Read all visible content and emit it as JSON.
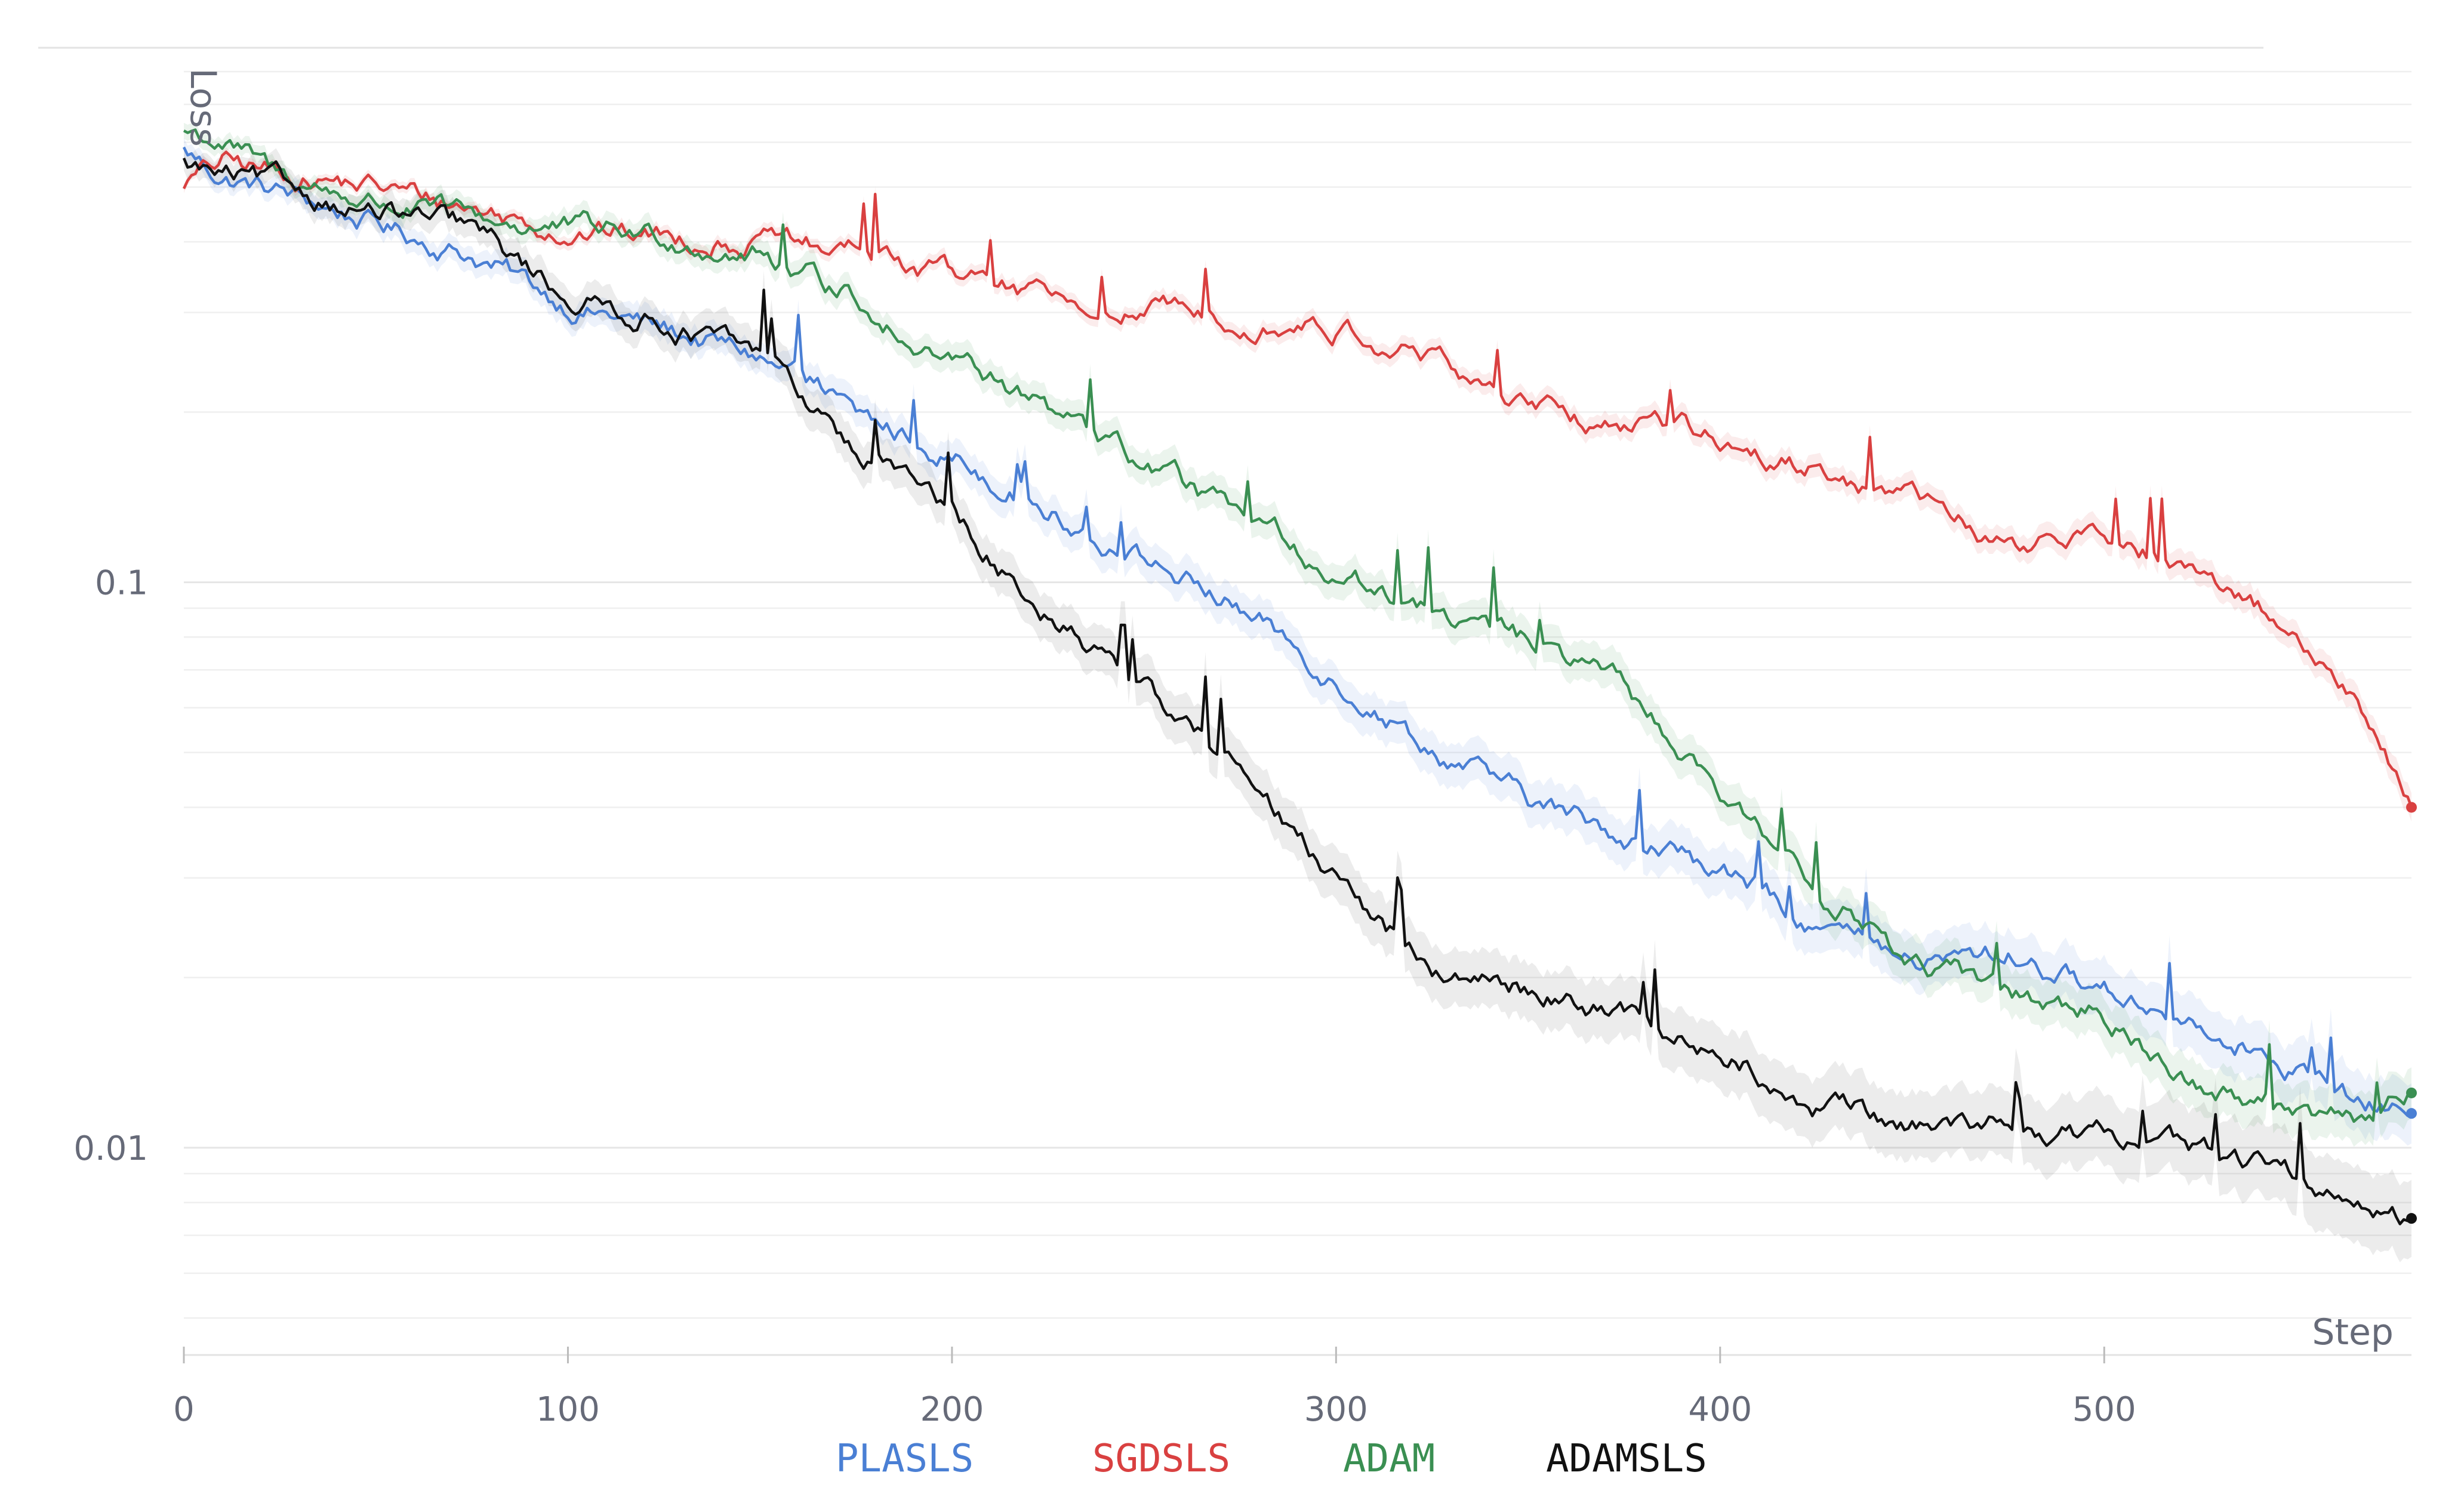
{
  "chart_data": {
    "type": "line",
    "title": "",
    "xlabel": "Step",
    "ylabel": "Loss",
    "y_scale": "log",
    "xlim": [
      0,
      580
    ],
    "ylim": [
      0.0043,
      0.8
    ],
    "x_ticks": [
      {
        "value": 0,
        "label": "0"
      },
      {
        "value": 100,
        "label": "100"
      },
      {
        "value": 200,
        "label": "200"
      },
      {
        "value": 300,
        "label": "300"
      },
      {
        "value": 400,
        "label": "400"
      },
      {
        "value": 500,
        "label": "500"
      }
    ],
    "y_ticks": [
      {
        "value": 0.1,
        "label": "0.1"
      },
      {
        "value": 0.01,
        "label": "0.01"
      }
    ],
    "grid": true,
    "legend_position": "bottom-center",
    "series": [
      {
        "name": "PLASLS",
        "color": "#4a7fd4",
        "band_color": "#4a7fd4",
        "x": [
          0,
          10,
          25,
          50,
          75,
          100,
          125,
          150,
          165,
          175,
          200,
          225,
          250,
          275,
          300,
          325,
          350,
          375,
          400,
          425,
          450,
          475,
          500,
          525,
          550,
          565,
          579
        ],
        "y": [
          0.58,
          0.52,
          0.49,
          0.43,
          0.38,
          0.31,
          0.28,
          0.25,
          0.22,
          0.195,
          0.17,
          0.135,
          0.11,
          0.09,
          0.068,
          0.051,
          0.041,
          0.036,
          0.031,
          0.025,
          0.021,
          0.022,
          0.019,
          0.017,
          0.014,
          0.012,
          0.0115
        ],
        "band_ratio": 1.13
      },
      {
        "name": "SGDSLS",
        "color": "#d94040",
        "band_color": "#d94040",
        "x": [
          0,
          10,
          25,
          50,
          75,
          100,
          125,
          150,
          175,
          200,
          225,
          250,
          275,
          300,
          325,
          350,
          375,
          400,
          425,
          450,
          475,
          500,
          525,
          550,
          565,
          579
        ],
        "y": [
          0.51,
          0.55,
          0.53,
          0.5,
          0.46,
          0.42,
          0.41,
          0.4,
          0.38,
          0.35,
          0.31,
          0.3,
          0.3,
          0.28,
          0.25,
          0.2,
          0.19,
          0.18,
          0.16,
          0.14,
          0.115,
          0.12,
          0.105,
          0.082,
          0.062,
          0.04
        ],
        "band_ratio": 1.06
      },
      {
        "name": "ADAM",
        "color": "#3a8f52",
        "band_color": "#3a8f52",
        "x": [
          0,
          10,
          25,
          50,
          75,
          100,
          125,
          150,
          175,
          200,
          225,
          250,
          275,
          300,
          325,
          350,
          375,
          400,
          425,
          450,
          475,
          500,
          525,
          550,
          565,
          579
        ],
        "y": [
          0.63,
          0.6,
          0.52,
          0.47,
          0.44,
          0.42,
          0.41,
          0.38,
          0.32,
          0.25,
          0.2,
          0.16,
          0.13,
          0.105,
          0.089,
          0.078,
          0.065,
          0.041,
          0.03,
          0.021,
          0.019,
          0.017,
          0.013,
          0.012,
          0.011,
          0.0125
        ],
        "band_ratio": 1.11
      },
      {
        "name": "ADAMSLS",
        "color": "#111111",
        "band_color": "#444444",
        "x": [
          0,
          10,
          25,
          50,
          75,
          100,
          125,
          150,
          165,
          175,
          200,
          225,
          250,
          275,
          300,
          325,
          350,
          375,
          400,
          425,
          450,
          475,
          500,
          525,
          550,
          565,
          579
        ],
        "y": [
          0.55,
          0.52,
          0.5,
          0.45,
          0.42,
          0.32,
          0.29,
          0.25,
          0.2,
          0.175,
          0.135,
          0.088,
          0.066,
          0.046,
          0.029,
          0.021,
          0.019,
          0.017,
          0.015,
          0.012,
          0.011,
          0.011,
          0.0105,
          0.01,
          0.0088,
          0.0082,
          0.0075
        ],
        "band_ratio": 1.17
      }
    ]
  }
}
